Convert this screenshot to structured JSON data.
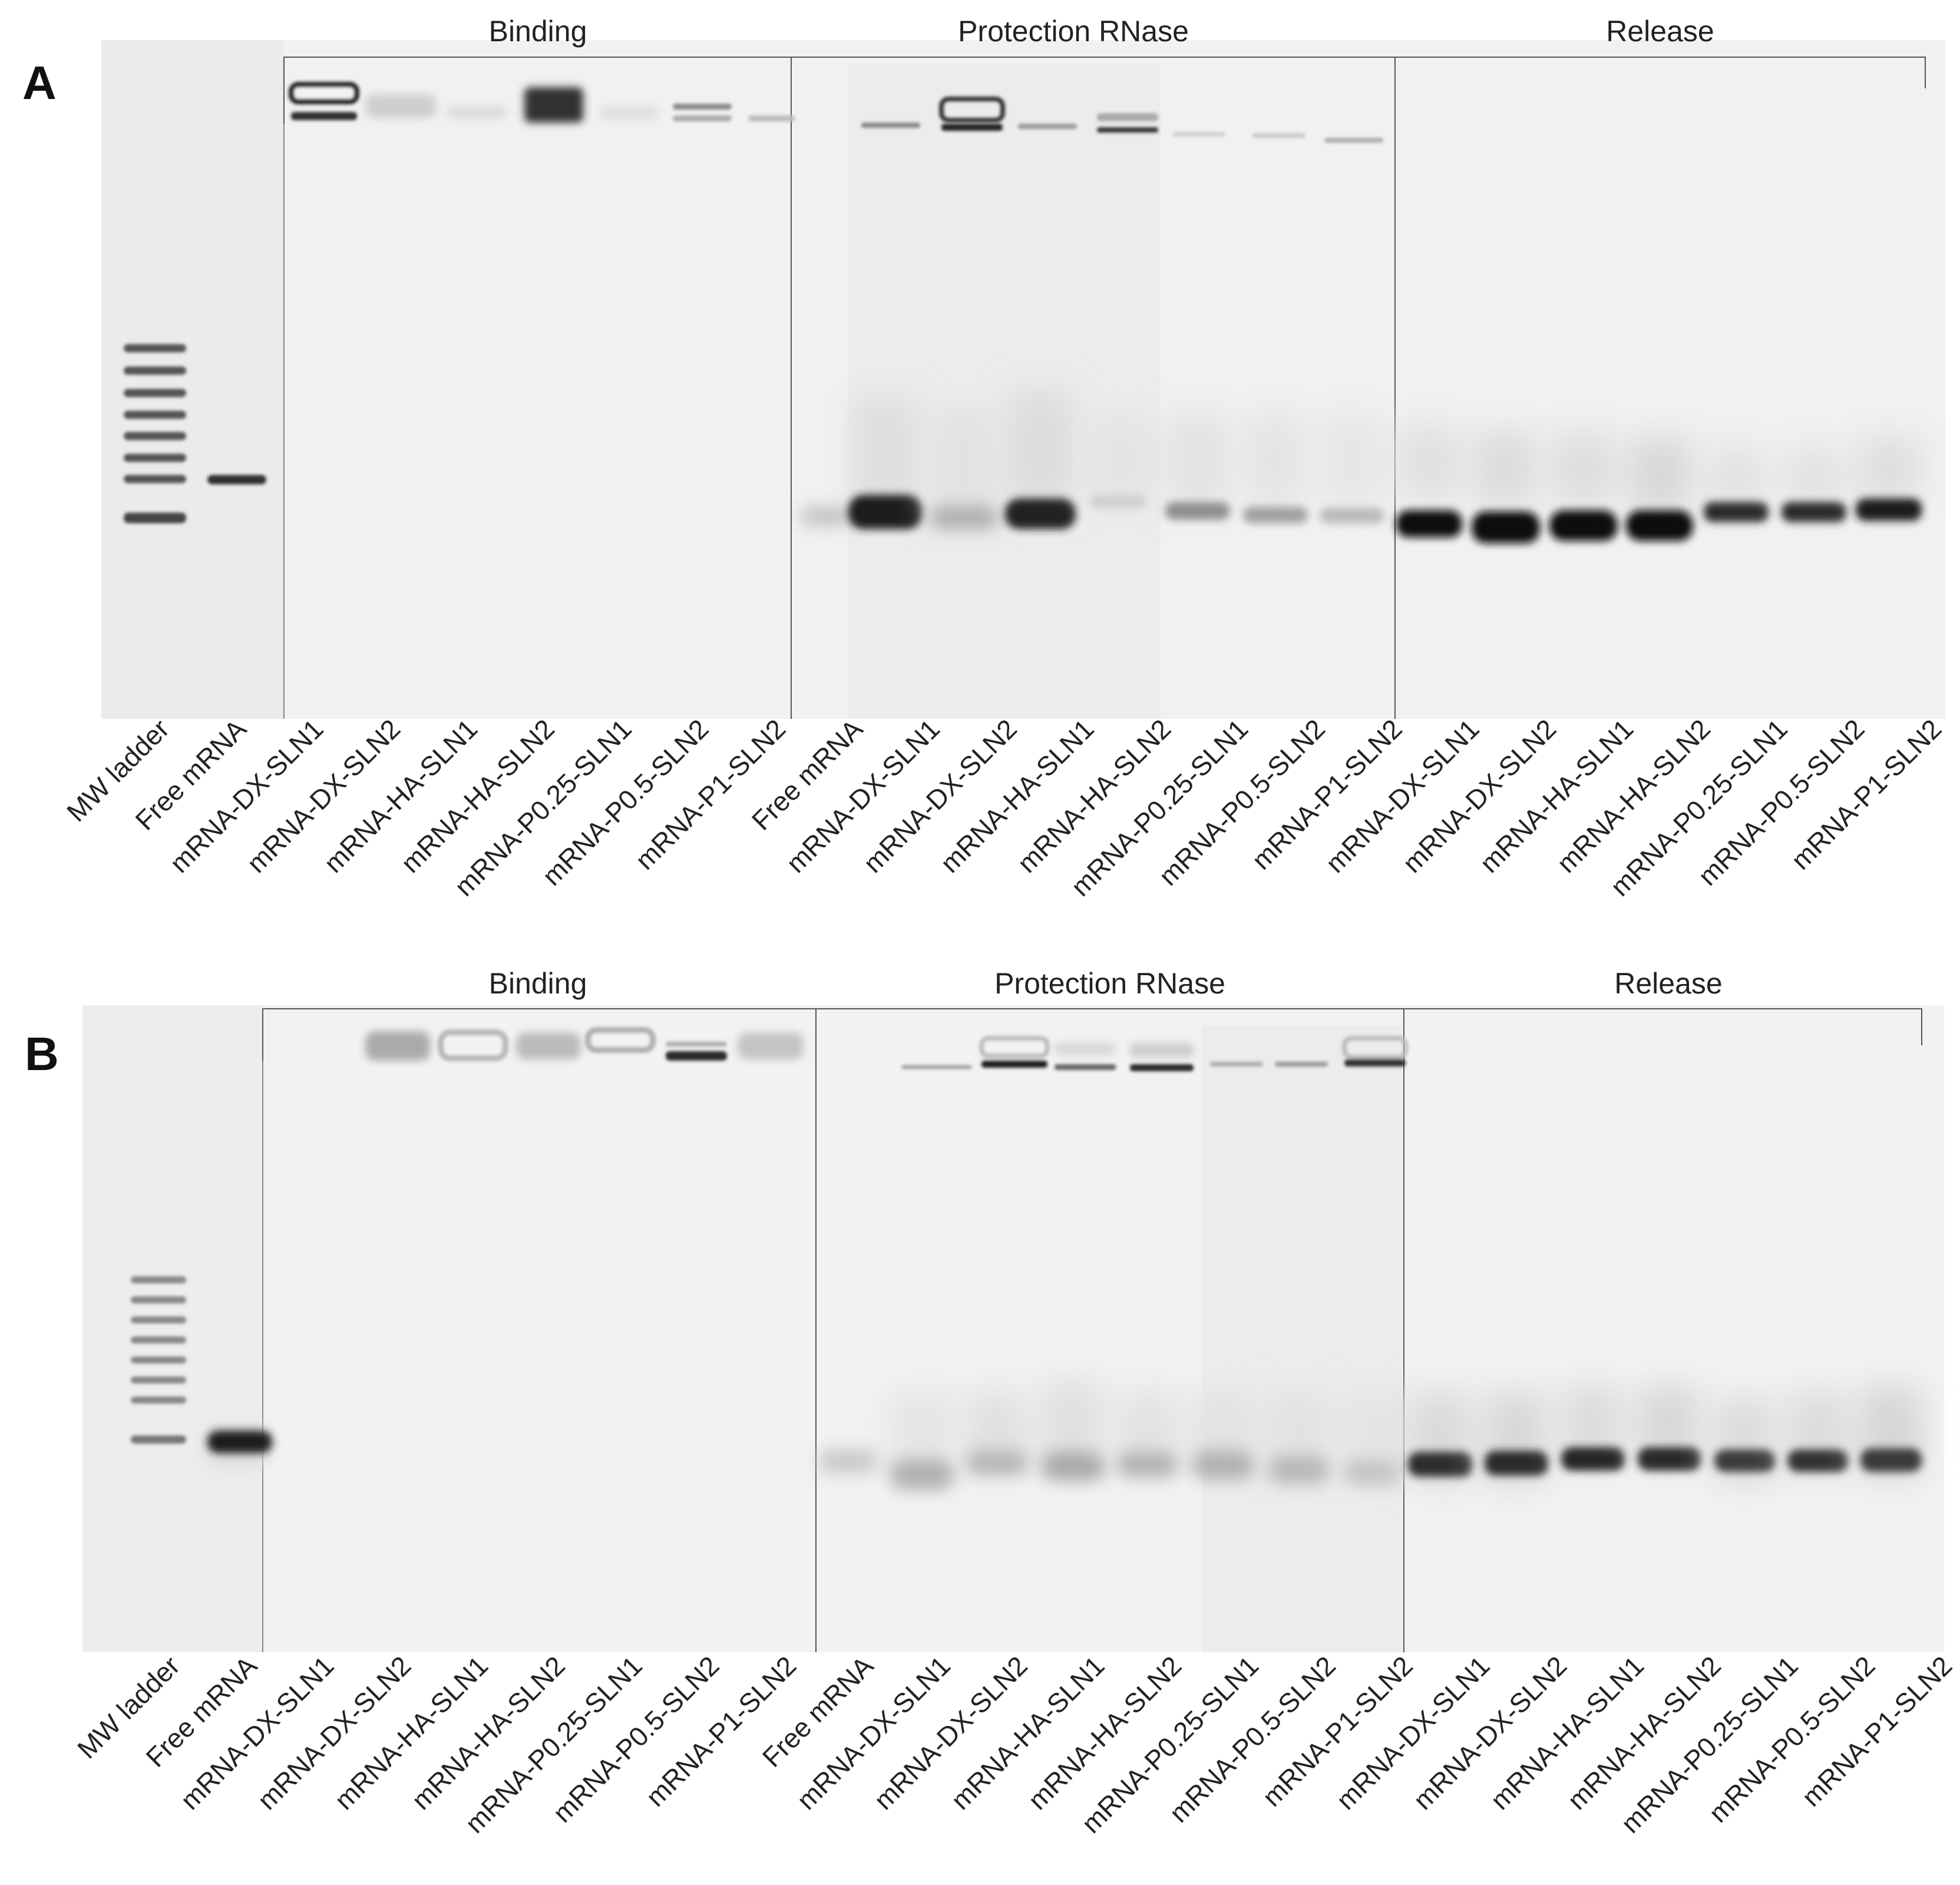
{
  "panels": [
    {
      "letter": "A",
      "sections": [
        "Binding",
        "Protection RNase",
        "Release"
      ],
      "lanes": [
        "MW ladder",
        "Free mRNA",
        "mRNA-DX-SLN1",
        "mRNA-DX-SLN2",
        "mRNA-HA-SLN1",
        "mRNA-HA-SLN2",
        "mRNA-P0.25-SLN1",
        "mRNA-P0.5-SLN2",
        "mRNA-P1-SLN2",
        "Free mRNA",
        "mRNA-DX-SLN1",
        "mRNA-DX-SLN2",
        "mRNA-HA-SLN1",
        "mRNA-HA-SLN2",
        "mRNA-P0.25-SLN1",
        "mRNA-P0.5-SLN2",
        "mRNA-P1-SLN2",
        "mRNA-DX-SLN1",
        "mRNA-DX-SLN2",
        "mRNA-HA-SLN1",
        "mRNA-HA-SLN2",
        "mRNA-P0.25-SLN1",
        "mRNA-P0.5-SLN2",
        "mRNA-P1-SLN2"
      ]
    },
    {
      "letter": "B",
      "sections": [
        "Binding",
        "Protection RNase",
        "Release"
      ],
      "lanes": [
        "MW ladder",
        "Free mRNA",
        "mRNA-DX-SLN1",
        "mRNA-DX-SLN2",
        "mRNA-HA-SLN1",
        "mRNA-HA-SLN2",
        "mRNA-P0.25-SLN1",
        "mRNA-P0.5-SLN2",
        "mRNA-P1-SLN2",
        "Free mRNA",
        "mRNA-DX-SLN1",
        "mRNA-DX-SLN2",
        "mRNA-HA-SLN1",
        "mRNA-HA-SLN2",
        "mRNA-P0.25-SLN1",
        "mRNA-P0.5-SLN2",
        "mRNA-P1-SLN2",
        "mRNA-DX-SLN1",
        "mRNA-DX-SLN2",
        "mRNA-HA-SLN1",
        "mRNA-HA-SLN2",
        "mRNA-P0.25-SLN1",
        "mRNA-P0.5-SLN2",
        "mRNA-P1-SLN2"
      ]
    }
  ]
}
